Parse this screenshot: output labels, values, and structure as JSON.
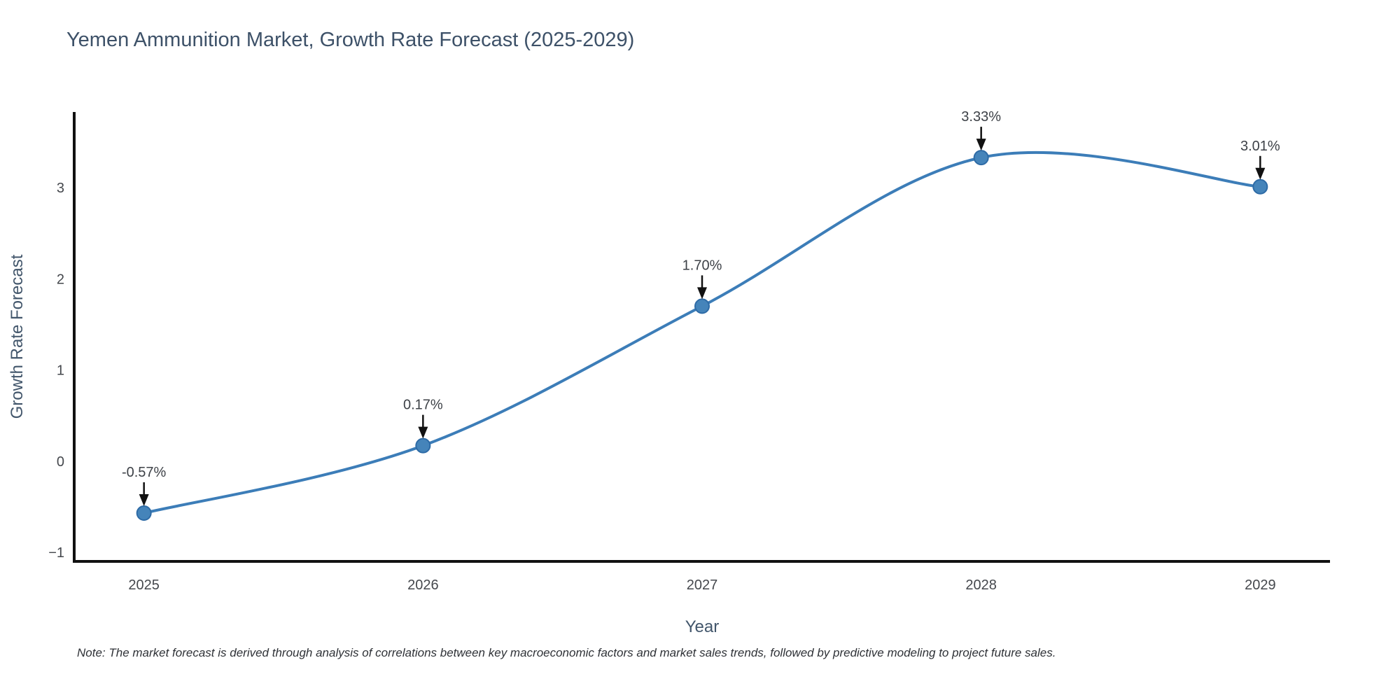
{
  "chart_data": {
    "type": "line",
    "title": "Yemen Ammunition Market, Growth Rate Forecast (2025-2029)",
    "xlabel": "Year",
    "ylabel": "Growth Rate Forecast",
    "x": [
      2025,
      2026,
      2027,
      2028,
      2029
    ],
    "values": [
      -0.57,
      0.17,
      1.7,
      3.33,
      3.01
    ],
    "point_labels": [
      "-0.57%",
      "0.17%",
      "1.70%",
      "3.33%",
      "3.01%"
    ],
    "xticks": {
      "values": [
        2025,
        2026,
        2027,
        2028,
        2029
      ],
      "labels": [
        "2025",
        "2026",
        "2027",
        "2028",
        "2029"
      ]
    },
    "yticks": {
      "values": [
        -1,
        0,
        1,
        2,
        3
      ],
      "labels": [
        "−1",
        "0",
        "1",
        "2",
        "3"
      ]
    },
    "xlim": [
      2024.75,
      2029.25
    ],
    "ylim": [
      -1.1,
      3.83
    ],
    "line_shape": "spline",
    "grid": false,
    "legend": "none",
    "note": "Note: The market forecast is derived through analysis of correlations between key macroeconomic factors and market sales trends, followed by predictive modeling to project future sales.",
    "colors": {
      "line": "#3c7db8",
      "marker_fill": "#4584ba",
      "marker_stroke": "#2e6ba6",
      "axis": "#111111",
      "arrow": "#111111",
      "title": "#3d5168",
      "tick": "#45484d",
      "annotation": "#3d4147",
      "note_text": "#2f3237",
      "background": "#ffffff"
    }
  }
}
